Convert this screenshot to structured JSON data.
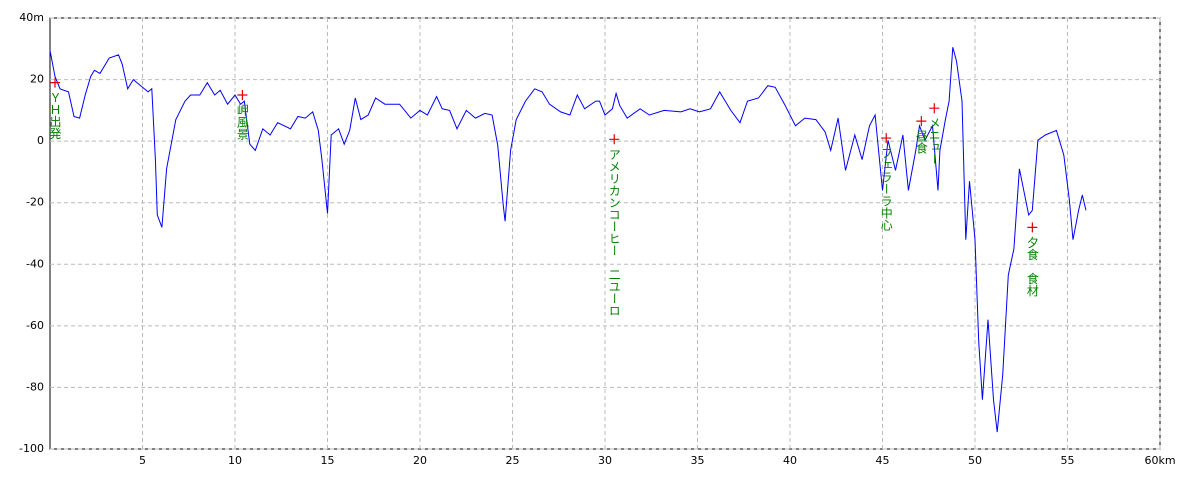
{
  "chart_data": {
    "type": "line",
    "color": "#0000ff",
    "grid": true,
    "x": [
      0,
      0.27,
      0.54,
      1.0,
      1.3,
      1.6,
      1.9,
      2.2,
      2.4,
      2.7,
      3.2,
      3.7,
      3.9,
      4.2,
      4.5,
      4.9,
      5.3,
      5.5,
      5.7,
      5.8,
      6.05,
      6.3,
      6.8,
      7.3,
      7.6,
      8.1,
      8.5,
      8.9,
      9.2,
      9.6,
      10.0,
      10.3,
      10.5,
      10.8,
      11.1,
      11.5,
      11.9,
      12.3,
      13.0,
      13.4,
      13.8,
      14.2,
      14.5,
      14.7,
      15.0,
      15.2,
      15.6,
      15.9,
      16.2,
      16.5,
      16.8,
      17.2,
      17.6,
      18.1,
      18.9,
      19.5,
      20.0,
      20.4,
      20.9,
      21.2,
      21.6,
      22.0,
      22.5,
      23.0,
      23.5,
      23.9,
      24.2,
      24.5,
      24.6,
      24.9,
      25.2,
      25.7,
      26.2,
      26.6,
      27.0,
      27.6,
      28.1,
      28.5,
      28.9,
      29.5,
      29.7,
      30.0,
      30.4,
      30.6,
      30.8,
      31.2,
      31.9,
      32.4,
      33.2,
      34.1,
      34.6,
      35.1,
      35.7,
      36.2,
      36.8,
      37.3,
      37.7,
      38.3,
      38.8,
      39.2,
      39.7,
      40.3,
      40.8,
      41.4,
      41.9,
      42.2,
      42.6,
      43.0,
      43.5,
      43.9,
      44.3,
      44.6,
      45.0,
      45.3,
      45.7,
      46.1,
      46.4,
      46.8,
      47.0,
      47.3,
      47.7,
      48.0,
      48.1,
      48.4,
      48.6,
      48.8,
      49.0,
      49.3,
      49.5,
      49.7,
      50.0,
      50.2,
      50.4,
      50.7,
      51.0,
      51.2,
      51.5,
      51.8,
      52.1,
      52.4,
      52.9,
      53.1,
      53.4,
      53.8,
      54.4,
      54.8,
      55.1,
      55.3,
      55.6,
      55.8,
      56.0
    ],
    "values": [
      29.5,
      21,
      17,
      16,
      8,
      7.5,
      15,
      21,
      23,
      22,
      27,
      28,
      25,
      17,
      20,
      18,
      16,
      17,
      -6,
      -24,
      -28,
      -9,
      7,
      13,
      15,
      15,
      19,
      15,
      16.5,
      12,
      15,
      12,
      13,
      -1,
      -3,
      4,
      2,
      6,
      4,
      8,
      7.5,
      9.5,
      3.5,
      -6,
      -23.5,
      2,
      4,
      -1,
      3.5,
      14,
      7,
      8.5,
      14,
      12,
      12,
      7.5,
      10,
      8.5,
      14.5,
      10.5,
      10,
      4,
      10,
      7.5,
      9,
      8.5,
      -1.3,
      -21,
      -26,
      -3,
      7,
      13,
      17,
      16,
      12,
      9.5,
      8.5,
      15,
      10.5,
      13,
      13,
      8.5,
      10.5,
      15.5,
      11.5,
      7.5,
      10.5,
      8.5,
      10,
      9.5,
      10.5,
      9.5,
      10.5,
      16,
      10,
      6,
      13,
      14,
      18,
      17.5,
      12,
      5,
      7.5,
      7,
      3,
      -3,
      7.5,
      -9.5,
      2,
      -6,
      5,
      8.5,
      -16,
      0.3,
      -9.5,
      2,
      -16,
      -3,
      5,
      0.3,
      5,
      -16,
      -3,
      7,
      13,
      30.5,
      26,
      13,
      -32,
      -13,
      -32,
      -65,
      -84,
      -58,
      -84,
      -94.5,
      -76,
      -43.5,
      -35,
      -9,
      -24,
      -22.5,
      0.3,
      2,
      3.5,
      -4.5,
      -19,
      -32,
      -22.5,
      -17.5,
      -22.5
    ],
    "xlim": [
      0,
      60
    ],
    "ylim": [
      -100,
      40
    ],
    "xticks": [
      5,
      10,
      15,
      20,
      25,
      30,
      35,
      40,
      45,
      50,
      55,
      {
        "value": 60,
        "label": "60km"
      }
    ],
    "yticks": [
      -100,
      -80,
      -60,
      -40,
      -20,
      0,
      20,
      {
        "value": 40,
        "label": "40m"
      }
    ],
    "annotations": [
      {
        "x": 0.27,
        "y": 19,
        "label": "ＹＨ出発"
      },
      {
        "x": 10.4,
        "y": 15,
        "label": "岬風景"
      },
      {
        "x": 30.5,
        "y": 0.6,
        "label": "アメリカンコーヒー　二ユーロ"
      },
      {
        "x": 45.2,
        "y": 1,
        "label": "フェラーラ中心"
      },
      {
        "x": 47.1,
        "y": 6.5,
        "label": "昼食"
      },
      {
        "x": 47.8,
        "y": 10.7,
        "label": "メニュー"
      },
      {
        "x": 53.1,
        "y": -28,
        "label": "夕食　食材"
      }
    ]
  }
}
